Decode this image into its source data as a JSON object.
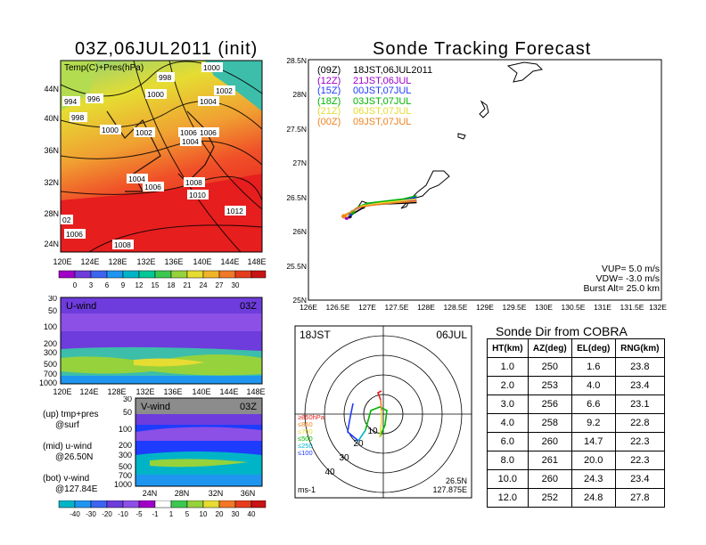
{
  "left": {
    "map_title": "03Z,06JUL2011 (init)",
    "map_label": "Temp(C)+Pres(hPa)",
    "lat_ticks": [
      "44N",
      "40N",
      "36N",
      "32N",
      "28N",
      "24N"
    ],
    "lon_ticks": [
      "120E",
      "124E",
      "128E",
      "132E",
      "136E",
      "140E",
      "144E",
      "148E"
    ],
    "pressure_labels": [
      "1000",
      "998",
      "1002",
      "996",
      "994",
      "998",
      "1000",
      "1002",
      "1004",
      "1006",
      "1006",
      "1004",
      "1004",
      "1006",
      "1008",
      "1010",
      "1012",
      "02",
      "1006",
      "1008",
      "1000"
    ],
    "temp_colorbar": [
      "0",
      "3",
      "6",
      "9",
      "12",
      "15",
      "18",
      "21",
      "24",
      "27",
      "30"
    ],
    "uwind": {
      "label": "U-wind",
      "time": "03Z",
      "levels": [
        "30",
        "50",
        "100",
        "200",
        "300",
        "500",
        "700",
        "1000"
      ],
      "lon_ticks": [
        "120E",
        "124E",
        "128E",
        "132E",
        "136E",
        "140E",
        "144E",
        "148E"
      ]
    },
    "vwind": {
      "label": "V-wind",
      "time": "03Z",
      "levels": [
        "30",
        "50",
        "100",
        "200",
        "300",
        "500",
        "700",
        "1000"
      ],
      "lat_ticks": [
        "24N",
        "28N",
        "32N",
        "36N"
      ]
    },
    "notes": [
      "(up) tmp+pres",
      "@surf",
      "(mid) u-wind",
      "@26.50N",
      "(bot) v-wind",
      "@127.84E"
    ],
    "wind_colorbar": [
      "-40",
      "-30",
      "-20",
      "-10",
      "-5",
      "-1",
      "1",
      "5",
      "10",
      "20",
      "30",
      "40"
    ]
  },
  "tracking": {
    "title": "Sonde Tracking Forecast",
    "legend": [
      {
        "code": "(09Z)",
        "time": "18JST,06JUL2011",
        "color": "#000000"
      },
      {
        "code": "(12Z)",
        "time": "21JST,06JUL",
        "color": "#9b00c8"
      },
      {
        "code": "(15Z)",
        "time": "00JST,07JUL",
        "color": "#1e3cff"
      },
      {
        "code": "(18Z)",
        "time": "03JST,07JUL",
        "color": "#00b400"
      },
      {
        "code": "(21Z)",
        "time": "06JST,07JUL",
        "color": "#e6dc32"
      },
      {
        "code": "(00Z)",
        "time": "09JST,07JUL",
        "color": "#f0821e"
      }
    ],
    "params": [
      "VUP= 5.0 m/s",
      "VDW= -3.0 m/s",
      "Burst Alt= 25.0 km"
    ],
    "lat_ticks": [
      "28.5N",
      "28N",
      "27.5N",
      "27N",
      "26.5N",
      "26N",
      "25.5N",
      "25N"
    ],
    "lon_ticks": [
      "126E",
      "126.5E",
      "127E",
      "127.5E",
      "128E",
      "128.5E",
      "129E",
      "129.5E",
      "130E",
      "130.5E",
      "131E",
      "131.5E",
      "132E"
    ]
  },
  "polar": {
    "time": "18JST",
    "date": "06JUL",
    "ring_labels": [
      "10",
      "20",
      "30",
      "40"
    ],
    "levels": [
      {
        "label": "≥850hPa",
        "color": "#e61e1e"
      },
      {
        "label": "≤850",
        "color": "#f0821e"
      },
      {
        "label": "≤700",
        "color": "#e6dc32"
      },
      {
        "label": "≤500",
        "color": "#00b400"
      },
      {
        "label": "≤250",
        "color": "#00b4c8"
      },
      {
        "label": "≤100",
        "color": "#1e3cff"
      }
    ],
    "unit": "ms-1",
    "loc_lat": "26.5N",
    "loc_lon": "127.875E"
  },
  "direction_table": {
    "title": "Sonde Dir from COBRA",
    "headers": [
      "HT(km)",
      "AZ(deg)",
      "EL(deg)",
      "RNG(km)"
    ],
    "rows": [
      [
        "1.0",
        "250",
        "1.6",
        "23.8"
      ],
      [
        "2.0",
        "253",
        "4.0",
        "23.4"
      ],
      [
        "3.0",
        "256",
        "6.6",
        "23.1"
      ],
      [
        "4.0",
        "258",
        "9.2",
        "22.8"
      ],
      [
        "6.0",
        "260",
        "14.7",
        "22.3"
      ],
      [
        "8.0",
        "261",
        "20.0",
        "22.3"
      ],
      [
        "10.0",
        "260",
        "24.3",
        "23.4"
      ],
      [
        "12.0",
        "252",
        "24.8",
        "27.8"
      ]
    ]
  },
  "chart_data": [
    {
      "type": "heatmap",
      "title": "03Z,06JUL2011 (init)",
      "label": "Temp(C)+Pres(hPa)",
      "colorbar": [
        0,
        3,
        6,
        9,
        12,
        15,
        18,
        21,
        24,
        27,
        30
      ]
    },
    {
      "type": "heatmap",
      "title": "U-wind",
      "colorbar": [
        -40,
        -30,
        -20,
        -10,
        -5,
        -1,
        1,
        5,
        10,
        20,
        30,
        40
      ]
    },
    {
      "type": "heatmap",
      "title": "V-wind",
      "colorbar": [
        -40,
        -30,
        -20,
        -10,
        -5,
        -1,
        1,
        5,
        10,
        20,
        30,
        40
      ]
    },
    {
      "type": "line",
      "title": "Sonde Tracking Forecast",
      "xlim": [
        126,
        132
      ],
      "ylim": [
        25,
        28.5
      ],
      "series": [
        {
          "name": "(09Z) 18JST,06JUL2011",
          "x": [
            127.84,
            127.6,
            127.3,
            127.0,
            126.8,
            126.7
          ],
          "y": [
            26.42,
            26.41,
            26.4,
            26.38,
            26.28,
            26.22
          ]
        },
        {
          "name": "(12Z) 21JST,06JUL",
          "x": [
            127.84,
            127.55,
            127.2,
            126.95,
            126.75,
            126.65
          ],
          "y": [
            26.45,
            26.43,
            26.41,
            26.38,
            26.3,
            26.2
          ]
        },
        {
          "name": "(15Z) 00JST,07JUL",
          "x": [
            127.84,
            127.55,
            127.25,
            126.95,
            126.8,
            126.7
          ],
          "y": [
            26.5,
            26.45,
            26.42,
            26.39,
            26.33,
            26.25
          ]
        },
        {
          "name": "(18Z) 03JST,07JUL",
          "x": [
            127.84,
            127.6,
            127.3,
            127.0,
            126.85,
            126.75
          ],
          "y": [
            26.52,
            26.47,
            26.44,
            26.41,
            26.36,
            26.28
          ]
        },
        {
          "name": "(21Z) 06JST,07JUL",
          "x": [
            127.84,
            127.5,
            127.2,
            126.9,
            126.75,
            126.65
          ],
          "y": [
            26.47,
            26.44,
            26.41,
            26.37,
            26.3,
            26.24
          ]
        },
        {
          "name": "(00Z) 09JST,07JUL",
          "x": [
            127.84,
            127.5,
            127.15,
            126.85,
            126.7,
            126.6
          ],
          "y": [
            26.44,
            26.42,
            26.39,
            26.35,
            26.27,
            26.22
          ]
        }
      ]
    },
    {
      "type": "table",
      "title": "Sonde Dir from COBRA",
      "columns": [
        "HT(km)",
        "AZ(deg)",
        "EL(deg)",
        "RNG(km)"
      ],
      "rows": [
        [
          1.0,
          250,
          1.6,
          23.8
        ],
        [
          2.0,
          253,
          4.0,
          23.4
        ],
        [
          3.0,
          256,
          6.6,
          23.1
        ],
        [
          4.0,
          258,
          9.2,
          22.8
        ],
        [
          6.0,
          260,
          14.7,
          22.3
        ],
        [
          8.0,
          261,
          20.0,
          22.3
        ],
        [
          10.0,
          260,
          24.3,
          23.4
        ],
        [
          12.0,
          252,
          24.8,
          27.8
        ]
      ]
    }
  ]
}
